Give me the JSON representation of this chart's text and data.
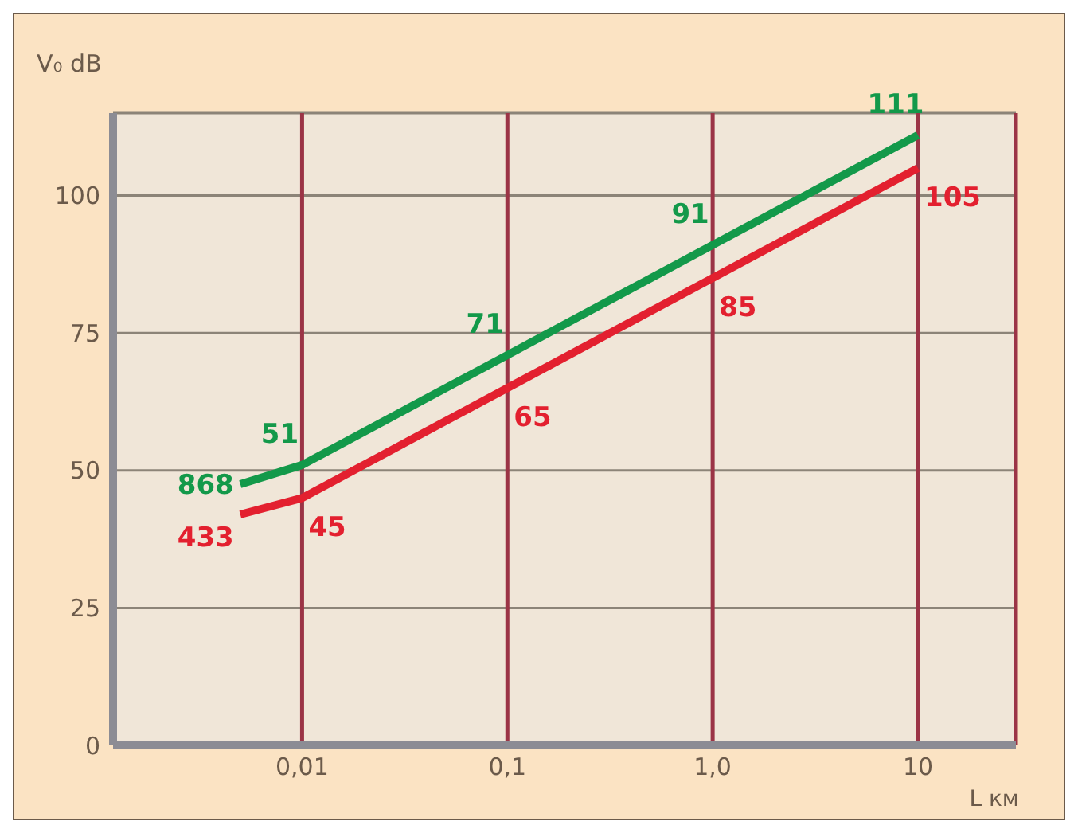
{
  "chart_data": {
    "type": "line",
    "xlabel": "L км",
    "ylabel": "V₀ dB",
    "log": "x",
    "grid": true,
    "xlim": [
      0.0012,
      30
    ],
    "xticks": [
      {
        "value": 0.01,
        "label": "0,01"
      },
      {
        "value": 0.1,
        "label": "0,1"
      },
      {
        "value": 1,
        "label": "1,0"
      },
      10
    ],
    "ylim": [
      0,
      115
    ],
    "yticks": [
      0,
      25,
      50,
      75,
      100
    ],
    "marker": "none",
    "line_style": "solid",
    "series": [
      {
        "name": "868",
        "color": "#13994a",
        "x": [
          0.005,
          0.01,
          0.1,
          1,
          10
        ],
        "values": [
          47.5,
          51,
          71,
          91,
          111
        ],
        "value_labels": [
          null,
          "51",
          "71",
          "91",
          "111"
        ]
      },
      {
        "name": "433",
        "color": "#e3202f",
        "x": [
          0.005,
          0.01,
          0.1,
          1,
          10
        ],
        "values": [
          42,
          45,
          65,
          85,
          105
        ],
        "value_labels": [
          null,
          "45",
          "65",
          "85",
          "105"
        ]
      }
    ]
  }
}
